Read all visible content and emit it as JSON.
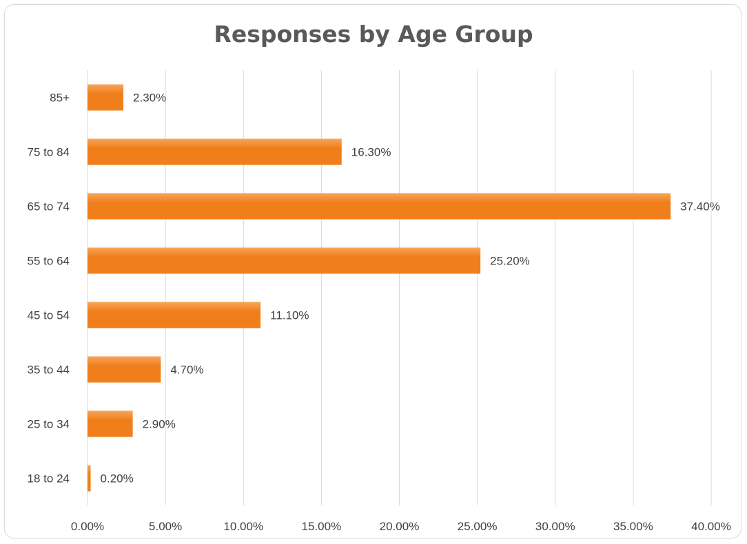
{
  "chart_data": {
    "type": "bar",
    "orientation": "horizontal",
    "title": "Responses by Age Group",
    "xlabel": "",
    "ylabel": "",
    "categories": [
      "85+",
      "75 to 84",
      "65 to 74",
      "55 to 64",
      "45 to 54",
      "35 to 44",
      "25 to 34",
      "18 to 24"
    ],
    "values": [
      2.3,
      16.3,
      37.4,
      25.2,
      11.1,
      4.7,
      2.9,
      0.2
    ],
    "data_labels": [
      "2.30%",
      "16.30%",
      "37.40%",
      "25.20%",
      "11.10%",
      "4.70%",
      "2.90%",
      "0.20%"
    ],
    "xlim": [
      0,
      40
    ],
    "x_ticks": [
      0,
      5,
      10,
      15,
      20,
      25,
      30,
      35,
      40
    ],
    "x_tick_labels": [
      "0.00%",
      "5.00%",
      "10.00%",
      "15.00%",
      "20.00%",
      "25.00%",
      "30.00%",
      "35.00%",
      "40.00%"
    ],
    "grid": "vertical",
    "legend": "none",
    "bar_color": "#f07f1b",
    "bar_highlight_color": "#f7a65c",
    "grid_color": "#d9d9d9",
    "text_color": "#404040",
    "title_color": "#595959"
  }
}
